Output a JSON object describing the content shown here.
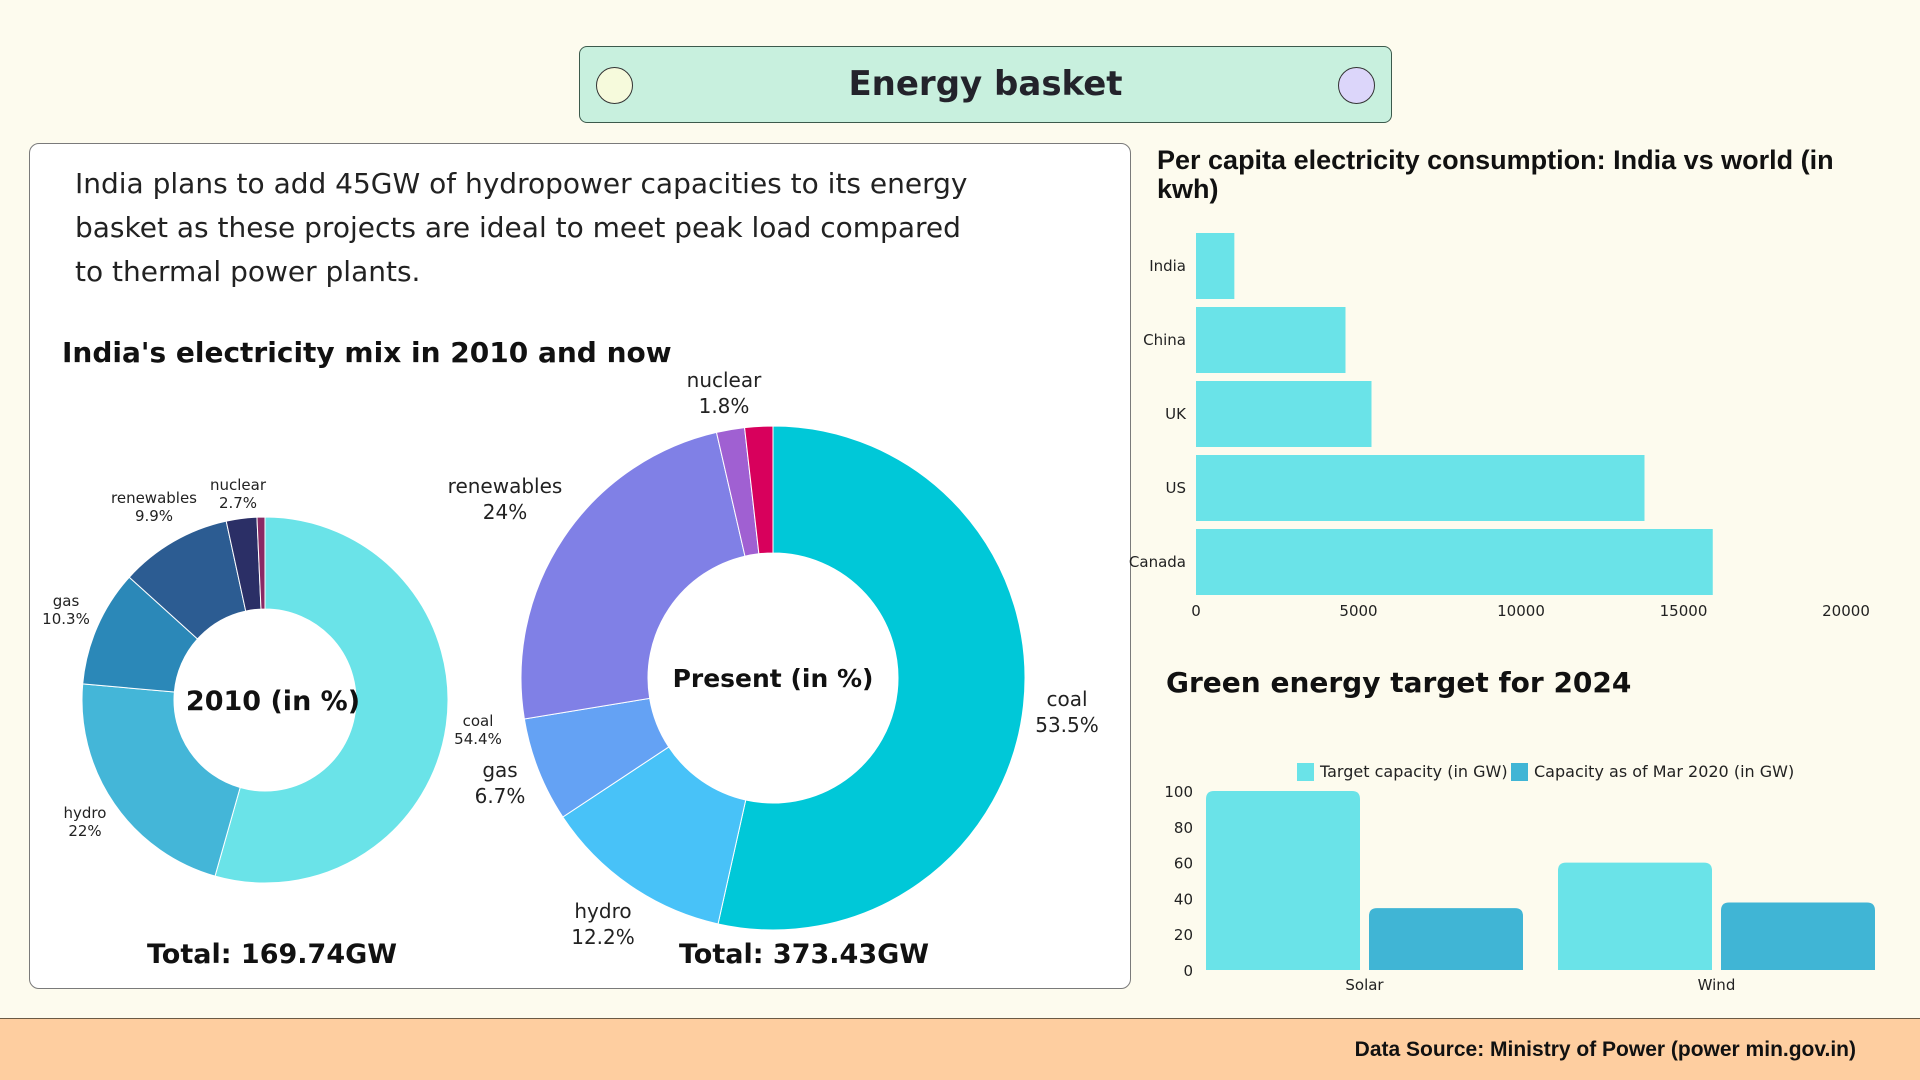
{
  "header": {
    "title": "Energy basket"
  },
  "intro": "India plans to add 45GW of hydropower capacities to its energy basket as these projects are ideal to meet peak load compared to thermal power plants.",
  "mix_title": "India's electricity mix in 2010 and now",
  "per_capita_title": "Per capita electricity consumption: India vs world (in kwh)",
  "green_title": "Green energy target for 2024",
  "footer": {
    "source": "Data Source: Ministry of Power (power min.gov.in)"
  },
  "colors": {
    "donut2010": [
      "#6ae3e8",
      "#44b6d8",
      "#2b88b8",
      "#2c5c92",
      "#2b2f66",
      "#8a2a64"
    ],
    "donutNow": [
      "#00c8d8",
      "#48c2f8",
      "#64a2f4",
      "#8080e6",
      "#a060d2",
      "#d8005c"
    ],
    "barCyan": "#6ae3e8",
    "barBlue": "#40b5d5"
  },
  "chart_data": [
    {
      "type": "pie",
      "center_label": "2010 (in %)",
      "total_label": "Total: 169.74GW",
      "slices": [
        {
          "name": "coal",
          "value": 54.4,
          "label": "54.4%"
        },
        {
          "name": "hydro",
          "value": 22,
          "label": "22%"
        },
        {
          "name": "gas",
          "value": 10.3,
          "label": "10.3%"
        },
        {
          "name": "renewables",
          "value": 9.9,
          "label": "9.9%"
        },
        {
          "name": "nuclear",
          "value": 2.7,
          "label": "2.7%"
        },
        {
          "name": "",
          "value": 0.7,
          "label": ""
        }
      ]
    },
    {
      "type": "pie",
      "center_label": "Present (in %)",
      "total_label": "Total: 373.43GW",
      "slices": [
        {
          "name": "coal",
          "value": 53.5,
          "label": "53.5%"
        },
        {
          "name": "hydro",
          "value": 12.2,
          "label": "12.2%"
        },
        {
          "name": "gas",
          "value": 6.7,
          "label": "6.7%"
        },
        {
          "name": "renewables",
          "value": 24,
          "label": "24%"
        },
        {
          "name": "",
          "value": 1.8,
          "label": ""
        },
        {
          "name": "nuclear",
          "value": 1.8,
          "label": "1.8%"
        }
      ]
    },
    {
      "type": "bar",
      "orientation": "horizontal",
      "title": "Per capita electricity consumption: India vs world (in kwh)",
      "categories": [
        "India",
        "China",
        "UK",
        "US",
        "Canada"
      ],
      "values": [
        1180,
        4600,
        5400,
        13800,
        15900
      ],
      "xlim": [
        0,
        20000
      ],
      "xticks": [
        "0",
        "5000",
        "10000",
        "15000",
        "20000"
      ],
      "grid": false
    },
    {
      "type": "bar",
      "title": "Green energy target for 2024",
      "categories": [
        "Solar",
        "Wind"
      ],
      "series": [
        {
          "name": "Target capacity (in GW)",
          "values": [
            100,
            60
          ]
        },
        {
          "name": "Capacity as of Mar 2020 (in GW)",
          "values": [
            34.6,
            37.7
          ]
        }
      ],
      "ylim": [
        0,
        100
      ],
      "yticks": [
        "0",
        "20",
        "40",
        "60",
        "80",
        "100"
      ],
      "legend": "top",
      "grid": false
    }
  ]
}
